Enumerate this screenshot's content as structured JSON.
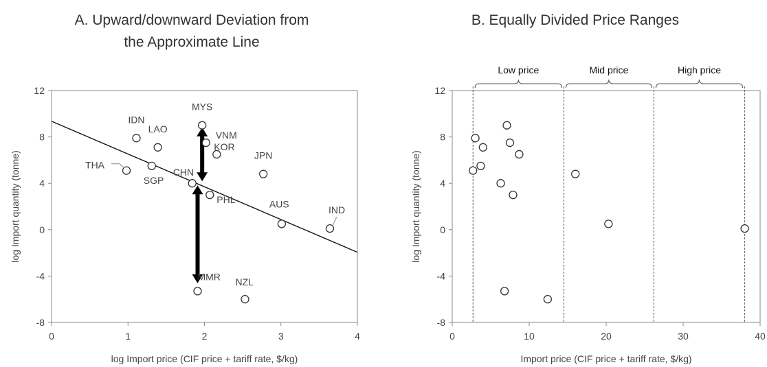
{
  "chart_data": [
    {
      "type": "scatter",
      "title_lines": [
        "A. Upward/downward Deviation from",
        "the Approximate Line"
      ],
      "xlabel": "log Import price (CIF price + tariff rate, $/kg)",
      "ylabel": "log Import quantity (tonne)",
      "xlim": [
        0,
        4
      ],
      "ylim": [
        -8,
        12
      ],
      "xticks": [
        0,
        1,
        2,
        3,
        4
      ],
      "yticks": [
        -8,
        -4,
        0,
        4,
        8,
        12
      ],
      "grid": false,
      "points": [
        {
          "label": "MYS",
          "x": 1.97,
          "y": 9.0
        },
        {
          "label": "IDN",
          "x": 1.11,
          "y": 7.9
        },
        {
          "label": "VNM",
          "x": 2.02,
          "y": 7.5
        },
        {
          "label": "LAO",
          "x": 1.39,
          "y": 7.1
        },
        {
          "label": "KOR",
          "x": 2.16,
          "y": 6.5
        },
        {
          "label": "SGP",
          "x": 1.31,
          "y": 5.5
        },
        {
          "label": "THA",
          "x": 0.98,
          "y": 5.1
        },
        {
          "label": "JPN",
          "x": 2.77,
          "y": 4.8
        },
        {
          "label": "CHN",
          "x": 1.84,
          "y": 4.0
        },
        {
          "label": "PHL",
          "x": 2.07,
          "y": 3.0
        },
        {
          "label": "AUS",
          "x": 3.01,
          "y": 0.5
        },
        {
          "label": "IND",
          "x": 3.64,
          "y": 0.1
        },
        {
          "label": "MMR",
          "x": 1.91,
          "y": -5.3
        },
        {
          "label": "NZL",
          "x": 2.53,
          "y": -6.0
        }
      ],
      "fit_line": {
        "x": [
          0,
          4
        ],
        "y": [
          9.35,
          -1.95
        ]
      },
      "arrows": [
        {
          "x": 1.97,
          "y_from": 4.0,
          "y_to": 9.0
        },
        {
          "x": 1.91,
          "y_from": 4.0,
          "y_to": -4.8
        }
      ]
    },
    {
      "type": "scatter",
      "title": "B.  Equally Divided Price Ranges",
      "xlabel": "Import price (CIF price + tariff rate, $/kg)",
      "ylabel": "log Import quantity (tonne)",
      "xlim": [
        0,
        40
      ],
      "ylim": [
        -8,
        12
      ],
      "xticks": [
        0,
        10,
        20,
        30,
        40
      ],
      "yticks": [
        -8,
        -4,
        0,
        4,
        8,
        12
      ],
      "grid": false,
      "points": [
        {
          "x": 7.1,
          "y": 9.0
        },
        {
          "x": 3.0,
          "y": 7.9
        },
        {
          "x": 7.5,
          "y": 7.5
        },
        {
          "x": 4.0,
          "y": 7.1
        },
        {
          "x": 8.7,
          "y": 6.5
        },
        {
          "x": 3.7,
          "y": 5.5
        },
        {
          "x": 2.7,
          "y": 5.1
        },
        {
          "x": 16.0,
          "y": 4.8
        },
        {
          "x": 6.3,
          "y": 4.0
        },
        {
          "x": 7.9,
          "y": 3.0
        },
        {
          "x": 20.3,
          "y": 0.5
        },
        {
          "x": 38.0,
          "y": 0.1
        },
        {
          "x": 6.8,
          "y": -5.3
        },
        {
          "x": 12.4,
          "y": -6.0
        }
      ],
      "range_bounds": [
        2.7,
        14.5,
        26.2,
        38.0
      ],
      "ranges": [
        {
          "label": "Low price",
          "from": 2.7,
          "to": 14.5
        },
        {
          "label": "Mid price",
          "from": 14.5,
          "to": 26.2
        },
        {
          "label": "High price",
          "from": 26.2,
          "to": 38.0
        }
      ]
    }
  ]
}
